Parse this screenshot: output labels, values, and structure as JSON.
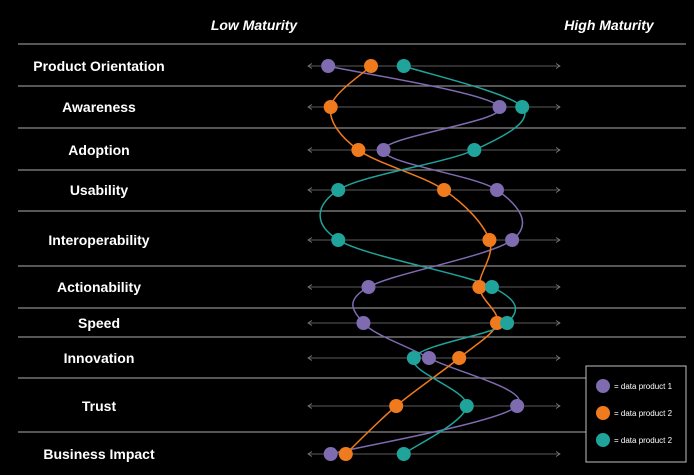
{
  "chart_data": {
    "type": "line",
    "header_left": "Low Maturity",
    "header_right": "High Maturity",
    "categories": [
      "Product Orientation",
      "Awareness",
      "Adoption",
      "Usability",
      "Interoperability",
      "Actionability",
      "Speed",
      "Innovation",
      "Trust",
      "Business Impact"
    ],
    "xlim": [
      0,
      100
    ],
    "series": [
      {
        "name": "= data product 1",
        "color": "#7e6bb0",
        "values": [
          8,
          76,
          30,
          75,
          81,
          24,
          22,
          48,
          83,
          9
        ]
      },
      {
        "name": "= data product 2",
        "color": "#f07b1e",
        "values": [
          25,
          9,
          20,
          54,
          72,
          68,
          75,
          60,
          35,
          15
        ]
      },
      {
        "name": "= data product 2",
        "color": "#20a39a",
        "values": [
          38,
          85,
          66,
          12,
          12,
          73,
          79,
          42,
          63,
          38
        ]
      }
    ],
    "legend": "bottom-right"
  }
}
